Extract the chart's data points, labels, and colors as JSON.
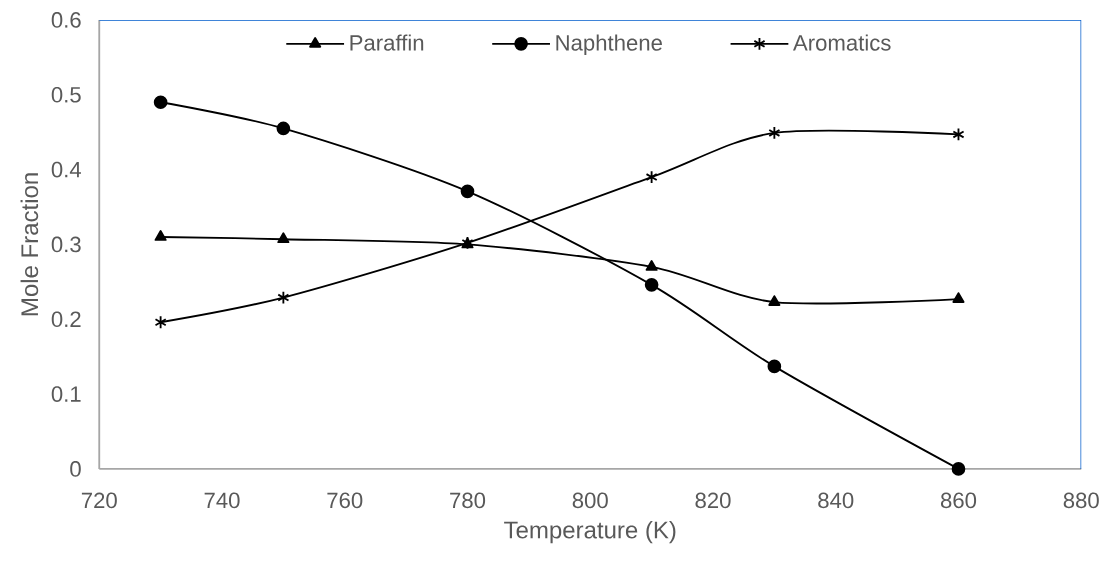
{
  "chart_data": {
    "type": "line",
    "xlabel": "Temperature (K)",
    "ylabel": "Mole Fraction",
    "x": [
      730,
      750,
      780,
      810,
      830,
      860
    ],
    "series": [
      {
        "name": "Paraffin",
        "color": "#000000",
        "marker": "triangle",
        "values": [
          0.31,
          0.307,
          0.3,
          0.27,
          0.223,
          0.227
        ]
      },
      {
        "name": "Naphthene",
        "color": "#000000",
        "marker": "circle",
        "values": [
          0.49,
          0.455,
          0.371,
          0.246,
          0.137,
          0.0
        ]
      },
      {
        "name": "Aromatics",
        "color": "#000000",
        "marker": "cross",
        "values": [
          0.196,
          0.229,
          0.302,
          0.39,
          0.449,
          0.447
        ]
      }
    ],
    "xlim": [
      720,
      880
    ],
    "xticks": [
      720,
      740,
      760,
      780,
      800,
      820,
      840,
      860,
      880
    ],
    "ylim": [
      0,
      0.6
    ],
    "yticks": [
      0,
      0.1,
      0.2,
      0.3,
      0.4,
      0.5,
      0.6
    ],
    "grid": false,
    "legend": "top",
    "line_style": "solid"
  }
}
